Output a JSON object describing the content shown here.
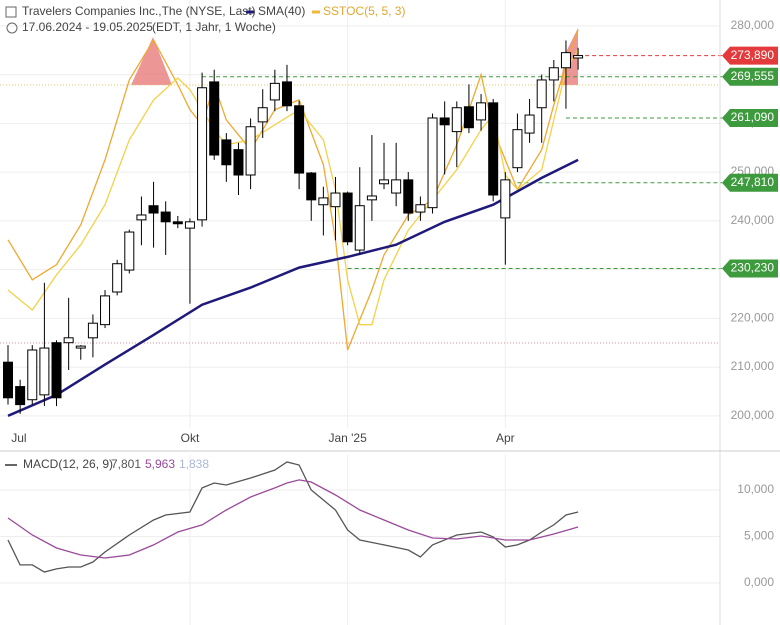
{
  "header": {
    "title": "Travelers Companies Inc.,The (NYSE, Last)",
    "date_range": "17.06.2024 - 19.05.2025",
    "note": "(EDT, 1 Jahr, 1 Woche)"
  },
  "chart_data": [
    {
      "type": "candlestick",
      "xlim": [
        -0.66,
        58.7
      ],
      "xticks": [
        {
          "value": 0.9,
          "label": "Jul"
        },
        {
          "value": 15.0,
          "label": "Okt"
        },
        {
          "value": 28.0,
          "label": "Jan '25"
        },
        {
          "value": 41.0,
          "label": "Apr"
        }
      ],
      "ylim": [
        197500,
        285300
      ],
      "yticks": [
        {
          "value": 200000,
          "label": "200,000"
        },
        {
          "value": 210000,
          "label": "210,000"
        },
        {
          "value": 220000,
          "label": "220,000"
        },
        {
          "value": 230000,
          "label": "230,000"
        },
        {
          "value": 240000,
          "label": "240,000"
        },
        {
          "value": 250000,
          "label": "250,000"
        },
        {
          "value": 260000,
          "label": "260,000"
        },
        {
          "value": 270000,
          "label": "270,000"
        },
        {
          "value": 280000,
          "label": "280,000"
        }
      ],
      "grid": true,
      "up_color": "#ffffff",
      "down_color": "#000000",
      "open": [
        211000,
        206000,
        203300,
        204300,
        215000,
        215000,
        213900,
        216000,
        218700,
        225400,
        229900,
        240200,
        243100,
        241800,
        239800,
        238500,
        240200,
        268500,
        256600,
        254600,
        249400,
        260300,
        264800,
        268500,
        263600,
        249800,
        243300,
        242900,
        245700,
        234000,
        244300,
        247600,
        245700,
        248400,
        241800,
        242700,
        261100,
        258300,
        263400,
        260700,
        264200,
        240600,
        250900,
        258000,
        263200,
        268900,
        271400,
        273400
      ],
      "high": [
        214500,
        207400,
        214500,
        227300,
        215500,
        224200,
        214500,
        220800,
        225800,
        232000,
        238200,
        245000,
        248000,
        244000,
        241000,
        240500,
        270400,
        271000,
        258000,
        256000,
        261000,
        267000,
        271000,
        272000,
        264600,
        250000,
        247000,
        249000,
        246000,
        251000,
        257600,
        256000,
        256000,
        250000,
        245000,
        262000,
        264500,
        264500,
        268000,
        266000,
        265000,
        250000,
        262000,
        265000,
        270000,
        273000,
        277000,
        275500
      ],
      "low": [
        202300,
        200400,
        202300,
        202000,
        202000,
        209400,
        211500,
        212000,
        218000,
        224700,
        229200,
        235000,
        234500,
        233000,
        238500,
        223000,
        238800,
        252500,
        248000,
        245300,
        246500,
        257000,
        262500,
        262500,
        246500,
        240000,
        237000,
        236000,
        235000,
        233000,
        240000,
        246500,
        243000,
        240000,
        240000,
        241500,
        249500,
        251000,
        258000,
        258500,
        244000,
        231000,
        250000,
        256000,
        256000,
        264500,
        263000,
        271000
      ],
      "close": [
        203700,
        202300,
        213500,
        213900,
        203700,
        216000,
        214300,
        219000,
        224600,
        231200,
        237700,
        241200,
        241600,
        239800,
        239400,
        239800,
        267300,
        253500,
        251500,
        249400,
        259300,
        263200,
        268200,
        263600,
        249800,
        244300,
        244700,
        245700,
        235700,
        243100,
        245100,
        248400,
        248400,
        241600,
        243300,
        261100,
        259700,
        263200,
        259100,
        264200,
        245300,
        248400,
        258700,
        261700,
        268900,
        271400,
        274500,
        273900
      ],
      "series": [
        {
          "name": "SMA(40)",
          "color": "#1f1a7a",
          "x": [
            0,
            4,
            8,
            12,
            16,
            20,
            24,
            28,
            32,
            36,
            40,
            44,
            47
          ],
          "values": [
            200000,
            204300,
            210500,
            216600,
            222800,
            226300,
            230400,
            232600,
            235100,
            239800,
            243300,
            248800,
            252500
          ]
        },
        {
          "name": "SSTOC(5, 5, 3)",
          "color": "#f0b838",
          "lines": [
            {
              "color": "#f0a830",
              "x": [
                0,
                2,
                4,
                6,
                8,
                10,
                12,
                14,
                15,
                16,
                17,
                18,
                20,
                22,
                24,
                26,
                27,
                28,
                29,
                30,
                31,
                33,
                35,
                37,
                39,
                40,
                41,
                42,
                44,
                45,
                46,
                47
              ],
              "values": [
                236100,
                227900,
                231000,
                239200,
                252500,
                268900,
                277100,
                267900,
                262800,
                259700,
                267900,
                260700,
                254600,
                262800,
                264800,
                251500,
                236100,
                213500,
                219700,
                225800,
                233000,
                241200,
                244300,
                255600,
                270000,
                258700,
                252500,
                246400,
                254600,
                263800,
                272000,
                279200
              ]
            },
            {
              "color": "#f5d048",
              "x": [
                0,
                2,
                4,
                6,
                8,
                10,
                12,
                14,
                15,
                16,
                17,
                18,
                20,
                22,
                24,
                26,
                27,
                28,
                29,
                30,
                31,
                33,
                35,
                37,
                39,
                40,
                41,
                42,
                44,
                45,
                46,
                47
              ],
              "values": [
                225800,
                221700,
                228900,
                235100,
                243300,
                256600,
                264800,
                269300,
                266900,
                262800,
                258700,
                255600,
                256600,
                259700,
                262800,
                256600,
                246400,
                227900,
                218700,
                218700,
                227900,
                238100,
                244300,
                250500,
                258700,
                261700,
                249400,
                246400,
                250500,
                260700,
                271000,
                275100
              ]
            }
          ]
        }
      ],
      "levels": [
        {
          "value": 273890,
          "label": "273,890",
          "color": "#e33b3b",
          "from": 47
        },
        {
          "value": 269555,
          "label": "269,555",
          "color": "#3d9a3d",
          "from": 16
        },
        {
          "value": 261090,
          "label": "261,090",
          "color": "#3d9a3d",
          "from": 46
        },
        {
          "value": 247810,
          "label": "247,810",
          "color": "#3d9a3d",
          "from": 42
        },
        {
          "value": 230230,
          "label": "230,230",
          "color": "#3d9a3d",
          "from": 28
        }
      ]
    },
    {
      "type": "line",
      "title": "MACD(12, 26, 9)",
      "readout": [
        {
          "label": "7,801",
          "color": "#555555"
        },
        {
          "label": "5,963",
          "color": "#9a4a9a"
        },
        {
          "label": "1,838",
          "color": "#a8b8d8"
        }
      ],
      "xlim": [
        -0.66,
        58.7
      ],
      "ylim": [
        -4516,
        13760
      ],
      "yticks": [
        {
          "value": 0,
          "label": "0,000"
        },
        {
          "value": 5000,
          "label": "5,000"
        },
        {
          "value": 10000,
          "label": "10,000"
        }
      ],
      "grid": true,
      "series": [
        {
          "color": "#555555",
          "x": [
            0,
            1,
            2,
            3,
            4,
            5,
            6,
            7,
            8,
            10,
            12,
            13,
            15,
            16,
            17,
            18,
            20,
            22,
            23,
            24,
            25,
            27,
            28,
            29,
            31,
            33,
            34,
            35,
            37,
            39,
            40,
            41,
            42,
            43,
            44,
            45,
            46,
            47
          ],
          "values": [
            4620,
            1940,
            1940,
            1180,
            1510,
            1720,
            1720,
            2260,
            3330,
            5160,
            6770,
            7310,
            7630,
            10220,
            10750,
            10540,
            11290,
            12150,
            13010,
            12690,
            10000,
            7850,
            5700,
            4620,
            4090,
            3550,
            2800,
            4090,
            5160,
            5480,
            4950,
            3870,
            4090,
            4620,
            5480,
            6240,
            7310,
            7630
          ]
        },
        {
          "color": "#9a4a9a",
          "x": [
            0,
            2,
            4,
            6,
            8,
            10,
            12,
            14,
            16,
            18,
            20,
            22,
            23,
            24,
            25,
            27,
            29,
            31,
            33,
            35,
            37,
            39,
            41,
            43,
            45,
            47
          ],
          "values": [
            6990,
            5160,
            3760,
            3010,
            2690,
            3010,
            4090,
            5480,
            6240,
            7850,
            9250,
            10220,
            10750,
            11080,
            10860,
            9460,
            7850,
            6770,
            5700,
            4840,
            4730,
            5050,
            4620,
            4620,
            5270,
            6020
          ]
        }
      ]
    }
  ]
}
